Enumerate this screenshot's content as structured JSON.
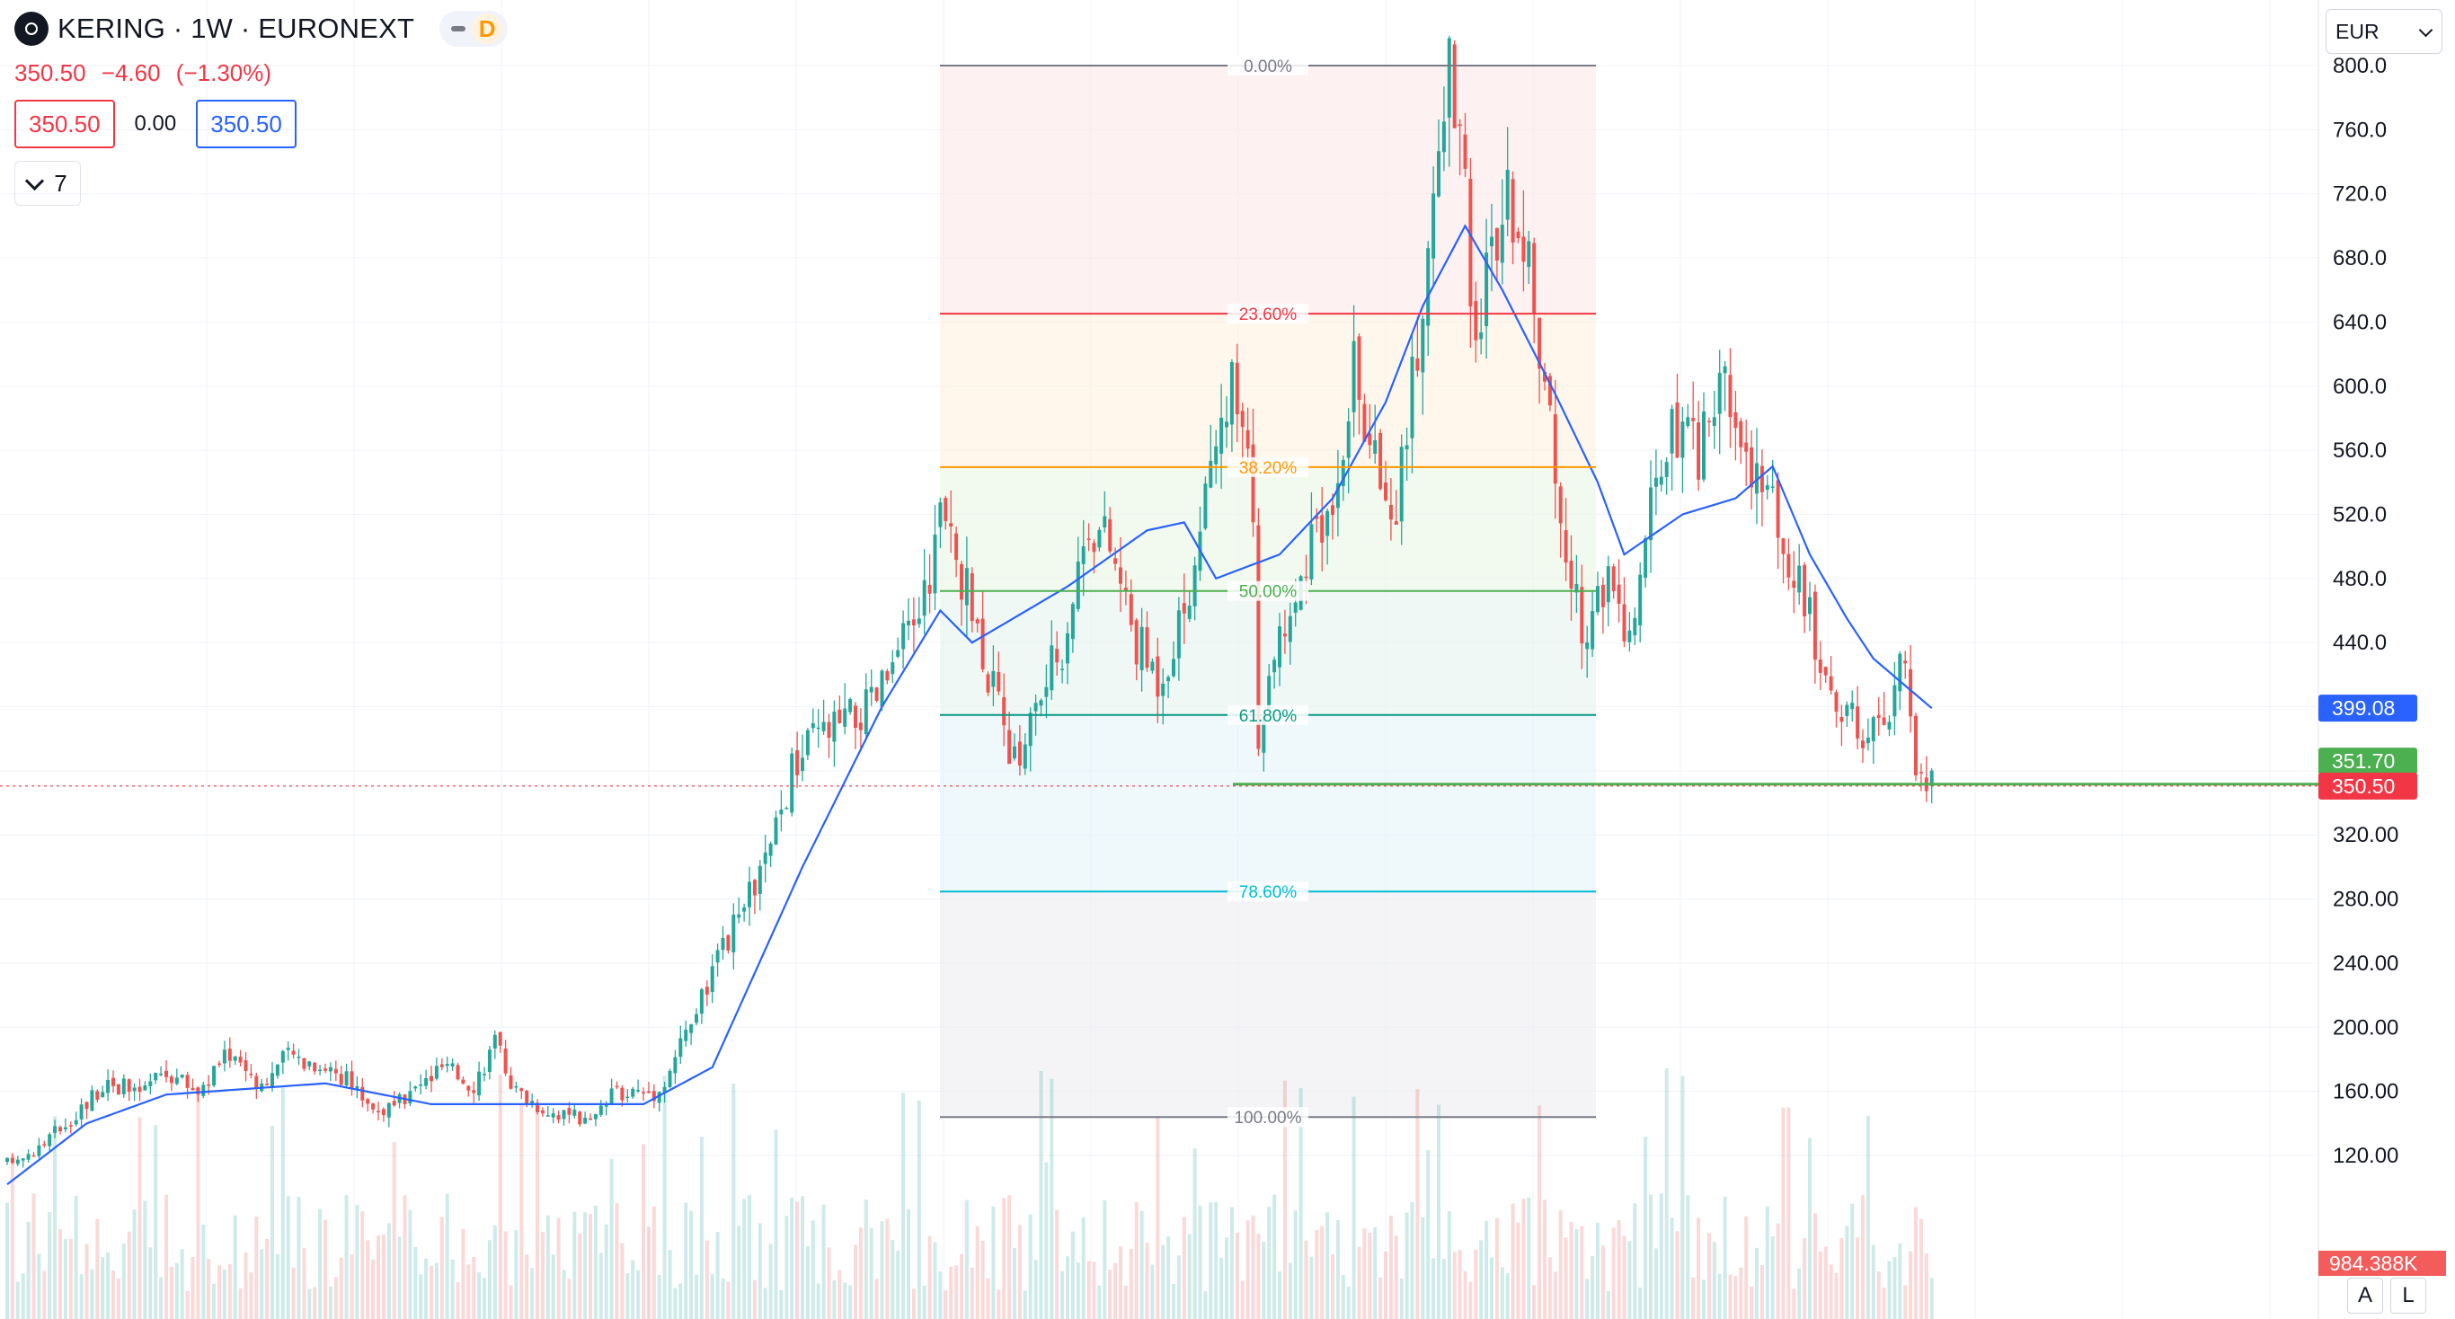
{
  "header": {
    "title": "KERING · 1W · EURONEXT",
    "price_change": [
      "350.50",
      "−4.60",
      "(−1.30%)"
    ],
    "sell_price": "350.50",
    "spread": "0.00",
    "buy_price": "350.50",
    "indicators_toggle_count": "7",
    "day_badge": "D"
  },
  "currency_selector": {
    "value": "EUR"
  },
  "axis_buttons": {
    "auto": "A",
    "log": "L"
  },
  "colors": {
    "up": "#26a69a",
    "down": "#ef5350",
    "ma": "#2962ff",
    "last_price": "#f23645",
    "support": "#4caf50",
    "fib_line_0": "#787b86",
    "fib_line_236": "#f23645",
    "fib_line_382": "#ff9800",
    "fib_line_50": "#4caf50",
    "fib_line_618": "#089981",
    "fib_line_786": "#00bcd4",
    "fib_line_100": "#787b86"
  },
  "chart_data": {
    "type": "candlestick",
    "timeframe": "1W",
    "y_axis_ticks": [
      "800.0",
      "760.0",
      "720.0",
      "680.0",
      "640.0",
      "600.0",
      "560.0",
      "520.0",
      "480.0",
      "440.0",
      "320.00",
      "280.00",
      "240.00",
      "200.00",
      "160.00",
      "120.00"
    ],
    "ylim": [
      100,
      815
    ],
    "price_path": [
      [
        0,
        115
      ],
      [
        6,
        125
      ],
      [
        14,
        150
      ],
      [
        19,
        168
      ],
      [
        24,
        158
      ],
      [
        30,
        172
      ],
      [
        36,
        160
      ],
      [
        42,
        185
      ],
      [
        48,
        165
      ],
      [
        53,
        183
      ],
      [
        58,
        178
      ],
      [
        62,
        173
      ],
      [
        70,
        148
      ],
      [
        73,
        150
      ],
      [
        82,
        175
      ],
      [
        88,
        165
      ],
      [
        92,
        190
      ],
      [
        96,
        160
      ],
      [
        101,
        150
      ],
      [
        110,
        140
      ],
      [
        115,
        160
      ],
      [
        123,
        160
      ],
      [
        134,
        240
      ],
      [
        144,
        310
      ],
      [
        148,
        360
      ],
      [
        152,
        380
      ],
      [
        158,
        390
      ],
      [
        163,
        400
      ],
      [
        168,
        430
      ],
      [
        173,
        470
      ],
      [
        176,
        520
      ],
      [
        180,
        480
      ],
      [
        184,
        440
      ],
      [
        187,
        395
      ],
      [
        190,
        365
      ],
      [
        194,
        400
      ],
      [
        199,
        440
      ],
      [
        204,
        520
      ],
      [
        208,
        500
      ],
      [
        213,
        440
      ],
      [
        217,
        420
      ],
      [
        221,
        450
      ],
      [
        226,
        520
      ],
      [
        231,
        600
      ],
      [
        235,
        530
      ],
      [
        236,
        360
      ],
      [
        239,
        440
      ],
      [
        244,
        480
      ],
      [
        249,
        520
      ],
      [
        254,
        610
      ],
      [
        257,
        560
      ],
      [
        262,
        530
      ],
      [
        265,
        600
      ],
      [
        268,
        680
      ],
      [
        270,
        760
      ],
      [
        272,
        800
      ],
      [
        273,
        780
      ],
      [
        277,
        640
      ],
      [
        281,
        700
      ],
      [
        285,
        720
      ],
      [
        289,
        620
      ],
      [
        293,
        520
      ],
      [
        297,
        440
      ],
      [
        301,
        480
      ],
      [
        306,
        440
      ],
      [
        310,
        520
      ],
      [
        314,
        570
      ],
      [
        319,
        560
      ],
      [
        323,
        600
      ],
      [
        328,
        560
      ],
      [
        333,
        520
      ],
      [
        338,
        480
      ],
      [
        343,
        420
      ],
      [
        347,
        400
      ],
      [
        350,
        370
      ],
      [
        355,
        400
      ],
      [
        358,
        430
      ],
      [
        360,
        360
      ],
      [
        363,
        351.7
      ]
    ],
    "moving_average": [
      [
        0,
        102
      ],
      [
        15,
        140
      ],
      [
        30,
        158
      ],
      [
        60,
        165
      ],
      [
        80,
        152
      ],
      [
        120,
        152
      ],
      [
        133,
        175
      ],
      [
        150,
        300
      ],
      [
        165,
        400
      ],
      [
        176,
        460
      ],
      [
        182,
        440
      ],
      [
        200,
        475
      ],
      [
        215,
        510
      ],
      [
        222,
        515
      ],
      [
        228,
        480
      ],
      [
        240,
        495
      ],
      [
        250,
        530
      ],
      [
        260,
        590
      ],
      [
        267,
        650
      ],
      [
        275,
        700
      ],
      [
        282,
        660
      ],
      [
        292,
        595
      ],
      [
        300,
        540
      ],
      [
        305,
        495
      ],
      [
        316,
        520
      ],
      [
        326,
        530
      ],
      [
        333,
        550
      ],
      [
        340,
        495
      ],
      [
        347,
        455
      ],
      [
        352,
        430
      ],
      [
        363,
        399.08
      ]
    ],
    "fibonacci_retracement": [
      {
        "label": "0.00%",
        "price": 800
      },
      {
        "label": "23.60%",
        "price": 645.2
      },
      {
        "label": "38.20%",
        "price": 549.5
      },
      {
        "label": "50.00%",
        "price": 472.2
      },
      {
        "label": "61.80%",
        "price": 394.8
      },
      {
        "label": "78.60%",
        "price": 284.7
      },
      {
        "label": "100.00%",
        "price": 144
      }
    ],
    "horizontal_levels": [
      {
        "price": 351.7,
        "label": "351.70"
      }
    ],
    "price_labels": {
      "ma": "399.08",
      "support": "351.70",
      "last": "350.50",
      "volume": "984.388K"
    },
    "last_price": 350.5
  }
}
